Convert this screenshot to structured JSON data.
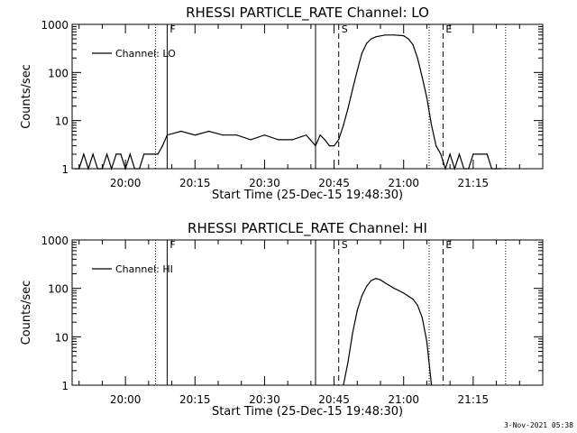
{
  "page": {
    "stamp": "3-Nov-2021 05:38"
  },
  "chart_data": [
    {
      "type": "line",
      "title": "RHESSI PARTICLE_RATE Channel: LO",
      "xlabel": "Start Time (25-Dec-15 19:48:30)",
      "ylabel": "Counts/sec",
      "legend": {
        "text": "Channel: LO",
        "position": "top-left"
      },
      "yscale": "log",
      "ylim": [
        1,
        1000
      ],
      "yticks": [
        "1",
        "10",
        "100",
        "1000"
      ],
      "xlim": [
        "19:48:30",
        "21:30:00"
      ],
      "xticks": [
        "20:00",
        "20:15",
        "20:30",
        "20:45",
        "21:00",
        "21:15"
      ],
      "grid": false,
      "markers": [
        {
          "time": "20:06:30",
          "style": "dotted",
          "label": ""
        },
        {
          "time": "20:09:00",
          "style": "solid",
          "label": "F"
        },
        {
          "time": "20:41:00",
          "style": "solid",
          "label": ""
        },
        {
          "time": "20:46:00",
          "style": "dashed",
          "label": "S"
        },
        {
          "time": "21:05:30",
          "style": "dotted",
          "label": ""
        },
        {
          "time": "21:08:30",
          "style": "dashed",
          "label": "E"
        },
        {
          "time": "21:22:00",
          "style": "dotted",
          "label": ""
        }
      ],
      "series": [
        {
          "name": "Channel: LO",
          "x": [
            "19:49",
            "19:50",
            "19:51",
            "19:52",
            "19:53",
            "19:54",
            "19:55",
            "19:56",
            "19:57",
            "19:58",
            "19:59",
            "20:00",
            "20:01",
            "20:02",
            "20:03",
            "20:04",
            "20:05",
            "20:06",
            "20:07",
            "20:08",
            "20:09",
            "20:12",
            "20:15",
            "20:18",
            "20:21",
            "20:24",
            "20:27",
            "20:30",
            "20:33",
            "20:36",
            "20:39",
            "20:41",
            "20:42",
            "20:43",
            "20:44",
            "20:45",
            "20:46",
            "20:47",
            "20:48",
            "20:49",
            "20:50",
            "20:51",
            "20:52",
            "20:53",
            "20:54",
            "20:56",
            "20:58",
            "21:00",
            "21:01",
            "21:02",
            "21:03",
            "21:04",
            "21:05",
            "21:06",
            "21:07",
            "21:08",
            "21:09",
            "21:10",
            "21:11",
            "21:12",
            "21:13",
            "21:14",
            "21:15",
            "21:16",
            "21:17",
            "21:18",
            "21:19",
            "21:20",
            "21:21"
          ],
          "y": [
            1,
            1,
            2,
            1,
            2,
            1,
            1,
            2,
            1,
            2,
            2,
            1,
            2,
            1,
            1,
            2,
            2,
            2,
            2,
            3,
            5,
            6,
            5,
            6,
            5,
            5,
            4,
            5,
            4,
            4,
            5,
            3,
            5,
            4,
            3,
            3,
            4,
            8,
            18,
            45,
            110,
            250,
            400,
            500,
            550,
            600,
            600,
            580,
            500,
            380,
            200,
            80,
            30,
            8,
            3,
            2,
            1,
            2,
            1,
            2,
            1,
            1,
            2,
            2,
            2,
            2,
            1,
            1,
            1
          ]
        }
      ]
    },
    {
      "type": "line",
      "title": "RHESSI PARTICLE_RATE Channel: HI",
      "xlabel": "Start Time (25-Dec-15 19:48:30)",
      "ylabel": "Counts/sec",
      "legend": {
        "text": "Channel: HI",
        "position": "top-left"
      },
      "yscale": "log",
      "ylim": [
        1,
        1000
      ],
      "yticks": [
        "1",
        "10",
        "100",
        "1000"
      ],
      "xlim": [
        "19:48:30",
        "21:30:00"
      ],
      "xticks": [
        "20:00",
        "20:15",
        "20:30",
        "20:45",
        "21:00",
        "21:15"
      ],
      "grid": false,
      "markers": [
        {
          "time": "20:06:30",
          "style": "dotted",
          "label": ""
        },
        {
          "time": "20:09:00",
          "style": "solid",
          "label": "F"
        },
        {
          "time": "20:41:00",
          "style": "solid",
          "label": ""
        },
        {
          "time": "20:46:00",
          "style": "dashed",
          "label": "S"
        },
        {
          "time": "21:05:30",
          "style": "dotted",
          "label": ""
        },
        {
          "time": "21:08:30",
          "style": "dashed",
          "label": "E"
        },
        {
          "time": "21:22:00",
          "style": "dotted",
          "label": ""
        }
      ],
      "series": [
        {
          "name": "Channel: HI",
          "x": [
            "20:47",
            "20:48",
            "20:49",
            "20:50",
            "20:51",
            "20:52",
            "20:53",
            "20:54",
            "20:55",
            "20:56",
            "20:58",
            "21:00",
            "21:02",
            "21:03",
            "21:04",
            "21:05",
            "21:06"
          ],
          "y": [
            1,
            3,
            12,
            35,
            70,
            110,
            145,
            160,
            150,
            130,
            100,
            80,
            60,
            45,
            25,
            8,
            1
          ]
        }
      ]
    }
  ]
}
